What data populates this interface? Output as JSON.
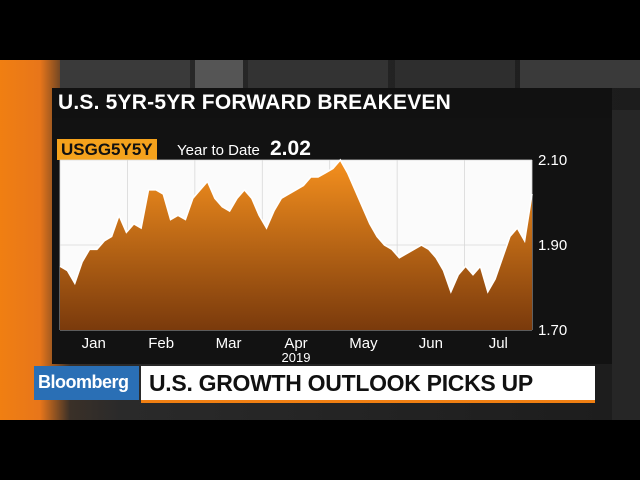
{
  "title": "U.S. 5YR-5YR FORWARD BREAKEVEN",
  "ticker": "USGG5Y5Y",
  "ytd_label": "Year to Date",
  "ytd_value": "2.02",
  "branding": {
    "logo": "Bloomberg",
    "headline": "U.S. GROWTH OUTLOOK PICKS UP"
  },
  "colors": {
    "line": "#ffffff",
    "fill_top": "#f5901e",
    "fill_bottom": "#7a3a0c",
    "accent": "#f07f12",
    "logo_bg": "#2a6fb5"
  },
  "chart_data": {
    "type": "area",
    "title": "U.S. 5YR-5YR FORWARD BREAKEVEN",
    "x_tick_labels": [
      "Jan",
      "Feb",
      "Mar",
      "Apr",
      "May",
      "Jun",
      "Jul"
    ],
    "x_year_label": "2019",
    "y_ticks": [
      1.7,
      1.9,
      2.1
    ],
    "ylim": [
      1.7,
      2.1
    ],
    "grid": true,
    "series": [
      {
        "values": [
          1.85,
          1.84,
          1.81,
          1.86,
          1.89,
          1.89,
          1.91,
          1.92,
          1.97,
          1.93,
          1.95,
          1.94,
          2.03,
          2.03,
          2.02,
          1.96,
          1.97,
          1.96,
          2.01,
          2.03,
          2.05,
          2.01,
          1.99,
          1.98,
          2.01,
          2.03,
          2.01,
          1.97,
          1.94,
          1.98,
          2.01,
          2.02,
          2.03,
          2.04,
          2.06,
          2.06,
          2.07,
          2.08,
          2.1,
          2.07,
          2.03,
          1.99,
          1.95,
          1.92,
          1.9,
          1.89,
          1.87,
          1.88,
          1.89,
          1.9,
          1.89,
          1.87,
          1.84,
          1.79,
          1.83,
          1.85,
          1.83,
          1.85,
          1.79,
          1.82,
          1.87,
          1.92,
          1.94,
          1.91,
          2.02
        ]
      }
    ]
  }
}
